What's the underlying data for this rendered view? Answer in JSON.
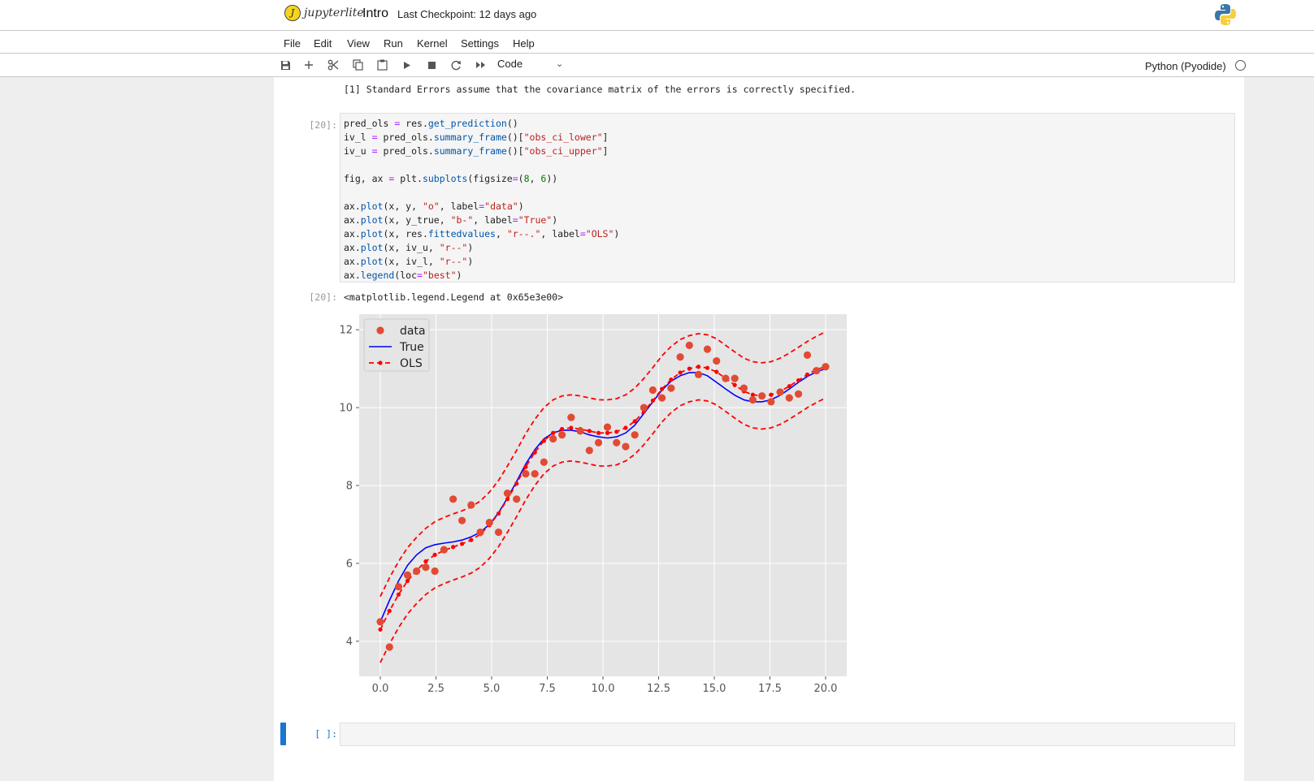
{
  "app": {
    "logo_text": "jupyterlite",
    "notebook_title": "Intro",
    "checkpoint": "Last Checkpoint: 12 days ago"
  },
  "menu": [
    "File",
    "Edit",
    "View",
    "Run",
    "Kernel",
    "Settings",
    "Help"
  ],
  "toolbar": {
    "icons": [
      "save-icon",
      "add-cell-icon",
      "cut-icon",
      "copy-icon",
      "paste-icon",
      "run-icon",
      "stop-icon",
      "restart-icon",
      "fast-forward-icon"
    ],
    "cell_type": "Code",
    "kernel_name": "Python (Pyodide)"
  },
  "notes_line": "[1] Standard Errors assume that the covariance matrix of the errors is correctly specified.",
  "code_cell": {
    "prompt": "[20]:",
    "lines": [
      "pred_ols = res.get_prediction()",
      "iv_l = pred_ols.summary_frame()[\"obs_ci_lower\"]",
      "iv_u = pred_ols.summary_frame()[\"obs_ci_upper\"]",
      "",
      "fig, ax = plt.subplots(figsize=(8, 6))",
      "",
      "ax.plot(x, y, \"o\", label=\"data\")",
      "ax.plot(x, y_true, \"b-\", label=\"True\")",
      "ax.plot(x, res.fittedvalues, \"r--.\", label=\"OLS\")",
      "ax.plot(x, iv_u, \"r--\")",
      "ax.plot(x, iv_l, \"r--\")",
      "ax.legend(loc=\"best\")"
    ]
  },
  "output": {
    "prompt": "[20]:",
    "text": "<matplotlib.legend.Legend at 0x65e3e00>"
  },
  "empty_cell": {
    "prompt": "[ ]:"
  },
  "chart_data": {
    "type": "line",
    "xlim": [
      -0.95,
      20.95
    ],
    "ylim": [
      3.1,
      12.4
    ],
    "xticks": [
      "0.0",
      "2.5",
      "5.0",
      "7.5",
      "10.0",
      "12.5",
      "15.0",
      "17.5",
      "20.0"
    ],
    "xtick_values": [
      0,
      2.5,
      5,
      7.5,
      10,
      12.5,
      15,
      17.5,
      20
    ],
    "yticks": [
      "4",
      "6",
      "8",
      "10",
      "12"
    ],
    "ytick_values": [
      4,
      6,
      8,
      10,
      12
    ],
    "grid": true,
    "legend": {
      "placement": "top-left",
      "entries": [
        "data",
        "True",
        "OLS"
      ]
    },
    "colors": {
      "data": "#e24a33",
      "true": "#0000ff",
      "ols": "#ff0000",
      "background": "#e5e5e5"
    },
    "x": [
      0.0,
      0.41,
      0.82,
      1.22,
      1.63,
      2.04,
      2.45,
      2.86,
      3.27,
      3.67,
      4.08,
      4.49,
      4.9,
      5.31,
      5.71,
      6.12,
      6.53,
      6.94,
      7.35,
      7.76,
      8.16,
      8.57,
      8.98,
      9.39,
      9.8,
      10.2,
      10.61,
      11.02,
      11.43,
      11.84,
      12.24,
      12.65,
      13.06,
      13.47,
      13.88,
      14.29,
      14.69,
      15.1,
      15.51,
      15.92,
      16.33,
      16.73,
      17.14,
      17.55,
      17.96,
      18.37,
      18.78,
      19.18,
      19.59,
      20.0
    ],
    "series": [
      {
        "name": "data",
        "style": "markers",
        "y": [
          4.5,
          3.85,
          5.4,
          5.7,
          5.8,
          5.9,
          5.8,
          6.35,
          7.65,
          7.1,
          7.5,
          6.8,
          7.05,
          6.8,
          7.8,
          7.65,
          8.3,
          8.3,
          8.6,
          9.2,
          9.3,
          9.75,
          9.4,
          8.9,
          9.1,
          9.5,
          9.1,
          9.0,
          9.3,
          10.0,
          10.45,
          10.25,
          10.5,
          11.3,
          11.6,
          10.85,
          11.5,
          11.2,
          10.75,
          10.75,
          10.5,
          10.2,
          10.3,
          10.15,
          10.4,
          10.25,
          10.35,
          11.35,
          10.95,
          11.05
        ]
      },
      {
        "name": "True",
        "style": "solid",
        "y": [
          4.5,
          5.05,
          5.55,
          5.95,
          6.22,
          6.4,
          6.48,
          6.52,
          6.55,
          6.6,
          6.68,
          6.8,
          7.0,
          7.3,
          7.68,
          8.1,
          8.55,
          8.92,
          9.2,
          9.35,
          9.42,
          9.42,
          9.38,
          9.3,
          9.25,
          9.22,
          9.25,
          9.35,
          9.55,
          9.85,
          10.15,
          10.45,
          10.68,
          10.82,
          10.9,
          10.9,
          10.82,
          10.65,
          10.48,
          10.32,
          10.2,
          10.15,
          10.15,
          10.2,
          10.32,
          10.48,
          10.65,
          10.8,
          10.92,
          11.0
        ]
      },
      {
        "name": "OLS",
        "style": "dash-dot-markers",
        "y": [
          4.3,
          4.78,
          5.2,
          5.55,
          5.82,
          6.05,
          6.22,
          6.33,
          6.42,
          6.5,
          6.6,
          6.75,
          6.98,
          7.28,
          7.65,
          8.05,
          8.48,
          8.85,
          9.15,
          9.35,
          9.45,
          9.48,
          9.45,
          9.4,
          9.35,
          9.35,
          9.38,
          9.48,
          9.65,
          9.9,
          10.18,
          10.48,
          10.72,
          10.9,
          11.0,
          11.05,
          11.02,
          10.92,
          10.75,
          10.58,
          10.42,
          10.33,
          10.3,
          10.33,
          10.42,
          10.55,
          10.7,
          10.85,
          10.98,
          11.05
        ]
      },
      {
        "name": "",
        "style": "dashed",
        "y": [
          5.15,
          5.63,
          6.05,
          6.4,
          6.67,
          6.9,
          7.07,
          7.18,
          7.27,
          7.35,
          7.45,
          7.6,
          7.83,
          8.13,
          8.5,
          8.9,
          9.33,
          9.7,
          10.0,
          10.2,
          10.3,
          10.33,
          10.3,
          10.25,
          10.2,
          10.2,
          10.23,
          10.33,
          10.5,
          10.75,
          11.03,
          11.33,
          11.57,
          11.75,
          11.85,
          11.9,
          11.87,
          11.77,
          11.6,
          11.43,
          11.27,
          11.18,
          11.15,
          11.18,
          11.27,
          11.4,
          11.55,
          11.7,
          11.83,
          11.95
        ]
      },
      {
        "name": "",
        "style": "dashed",
        "y": [
          3.45,
          3.93,
          4.35,
          4.7,
          4.97,
          5.2,
          5.37,
          5.48,
          5.57,
          5.65,
          5.75,
          5.9,
          6.13,
          6.43,
          6.8,
          7.2,
          7.63,
          8.0,
          8.3,
          8.5,
          8.6,
          8.63,
          8.6,
          8.55,
          8.5,
          8.5,
          8.53,
          8.63,
          8.8,
          9.05,
          9.33,
          9.63,
          9.87,
          10.05,
          10.15,
          10.2,
          10.17,
          10.07,
          9.9,
          9.73,
          9.57,
          9.48,
          9.45,
          9.48,
          9.57,
          9.7,
          9.85,
          10.0,
          10.13,
          10.25
        ]
      }
    ]
  }
}
